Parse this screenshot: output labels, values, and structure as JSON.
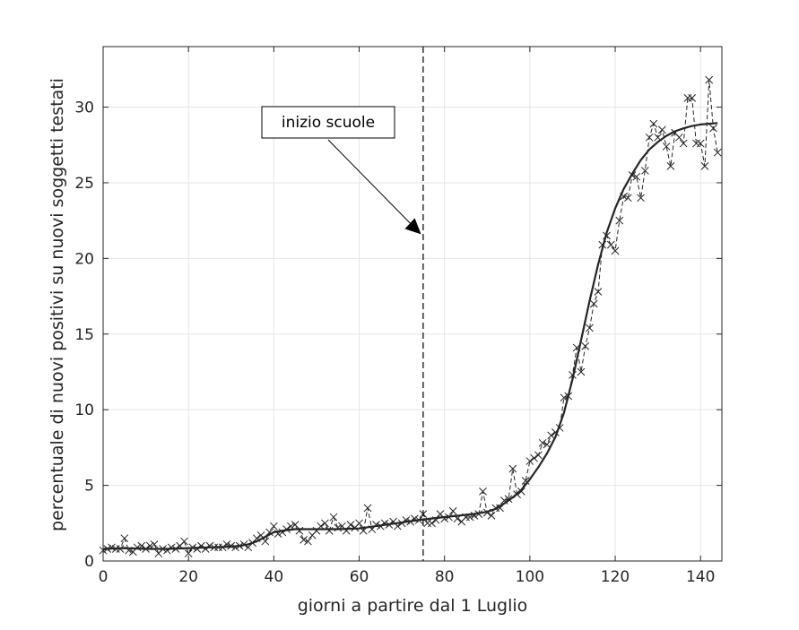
{
  "chart_data": {
    "type": "line",
    "title": "",
    "xlabel": "giorni a partire dal 1 Luglio",
    "ylabel": "percentuale di nuovi positivi su nuovi soggetti testati",
    "xlim": [
      0,
      145
    ],
    "ylim": [
      0,
      34
    ],
    "xticks": [
      0,
      20,
      40,
      60,
      80,
      100,
      120,
      140
    ],
    "yticks": [
      0,
      5,
      10,
      15,
      20,
      25,
      30
    ],
    "grid": true,
    "legend": "none",
    "colors": {
      "data": "#262626",
      "fit": "#262626",
      "grid": "#e6e6e6",
      "axis": "#262626"
    },
    "annotation": {
      "text": "inizio scuole",
      "vline_x": 75,
      "arrow_target": [
        74.5,
        21.6
      ]
    },
    "series": [
      {
        "style": "dashed-with-x-markers",
        "x": [
          0,
          1,
          2,
          3,
          4,
          5,
          6,
          7,
          8,
          9,
          10,
          11,
          12,
          13,
          14,
          15,
          16,
          17,
          18,
          19,
          20,
          21,
          22,
          23,
          24,
          25,
          26,
          27,
          28,
          29,
          30,
          31,
          32,
          33,
          34,
          35,
          36,
          37,
          38,
          39,
          40,
          41,
          42,
          43,
          44,
          45,
          46,
          47,
          48,
          49,
          50,
          51,
          52,
          53,
          54,
          55,
          56,
          57,
          58,
          59,
          60,
          61,
          62,
          63,
          64,
          65,
          66,
          67,
          68,
          69,
          70,
          71,
          72,
          73,
          74,
          75,
          76,
          77,
          78,
          79,
          80,
          81,
          82,
          83,
          84,
          85,
          86,
          87,
          88,
          89,
          90,
          91,
          92,
          93,
          94,
          95,
          96,
          97,
          98,
          99,
          100,
          101,
          102,
          103,
          104,
          105,
          106,
          107,
          108,
          109,
          110,
          111,
          112,
          113,
          114,
          115,
          116,
          117,
          118,
          119,
          120,
          121,
          122,
          123,
          124,
          125,
          126,
          127,
          128,
          129,
          130,
          131,
          132,
          133,
          134,
          135,
          136,
          137,
          138,
          139,
          140,
          141,
          142,
          143,
          144
        ],
        "y": [
          0.7,
          0.8,
          0.9,
          0.8,
          0.8,
          1.5,
          0.7,
          0.6,
          0.9,
          1.0,
          0.8,
          1.0,
          1.1,
          0.5,
          0.8,
          0.7,
          0.9,
          0.8,
          1.0,
          1.3,
          0.5,
          0.9,
          0.8,
          1.0,
          0.8,
          1.0,
          0.9,
          0.9,
          0.9,
          1.1,
          1.0,
          0.9,
          1.0,
          1.1,
          0.9,
          1.2,
          1.5,
          1.7,
          1.3,
          1.9,
          2.3,
          1.8,
          1.9,
          2.1,
          2.3,
          2.4,
          2.0,
          1.4,
          1.3,
          1.7,
          2.0,
          2.3,
          2.5,
          2.0,
          2.9,
          2.2,
          2.3,
          2.0,
          2.4,
          2.2,
          2.5,
          2.0,
          3.5,
          2.1,
          2.4,
          2.3,
          2.5,
          2.4,
          2.6,
          2.3,
          2.5,
          2.7,
          2.6,
          2.8,
          2.7,
          3.1,
          2.5,
          2.5,
          2.7,
          3.1,
          2.8,
          2.9,
          3.3,
          2.8,
          2.6,
          2.9,
          2.9,
          3.0,
          3.1,
          4.6,
          3.2,
          3.0,
          3.5,
          3.5,
          4.0,
          4.1,
          6.1,
          4.4,
          4.6,
          5.3,
          6.6,
          6.8,
          7.0,
          7.8,
          7.7,
          8.3,
          8.5,
          8.8,
          10.8,
          10.9,
          12.3,
          14.1,
          12.5,
          14.2,
          15.4,
          17.0,
          17.8,
          20.9,
          21.5,
          20.9,
          20.5,
          22.5,
          24.1,
          24.0,
          25.5,
          25.4,
          24.0,
          25.8,
          28.0,
          28.9,
          28.0,
          28.5,
          27.4,
          26.1,
          28.3,
          28.0,
          27.6,
          30.6,
          30.6,
          27.6,
          27.6,
          26.1,
          31.8,
          28.6,
          27.0
        ]
      },
      {
        "style": "solid-fit",
        "x": [
          0,
          5,
          10,
          15,
          20,
          25,
          30,
          32,
          34,
          36,
          38,
          40,
          42,
          45,
          50,
          55,
          60,
          65,
          70,
          75,
          80,
          85,
          88,
          90,
          92,
          94,
          96,
          98,
          100,
          102,
          104,
          106,
          108,
          110,
          112,
          114,
          116,
          118,
          120,
          122,
          124,
          126,
          128,
          130,
          132,
          134,
          136,
          138,
          140,
          142,
          144
        ],
        "y": [
          0.8,
          0.85,
          0.8,
          0.8,
          0.85,
          0.9,
          0.95,
          1.0,
          1.1,
          1.3,
          1.6,
          1.9,
          2.0,
          2.1,
          2.1,
          2.1,
          2.15,
          2.35,
          2.55,
          2.75,
          2.9,
          3.05,
          3.15,
          3.25,
          3.45,
          3.8,
          4.2,
          4.7,
          5.4,
          6.2,
          7.1,
          8.2,
          9.8,
          12.0,
          14.6,
          17.2,
          19.6,
          21.7,
          23.3,
          24.6,
          25.6,
          26.5,
          27.2,
          27.7,
          28.1,
          28.4,
          28.6,
          28.75,
          28.85,
          28.9,
          28.95
        ]
      }
    ]
  }
}
